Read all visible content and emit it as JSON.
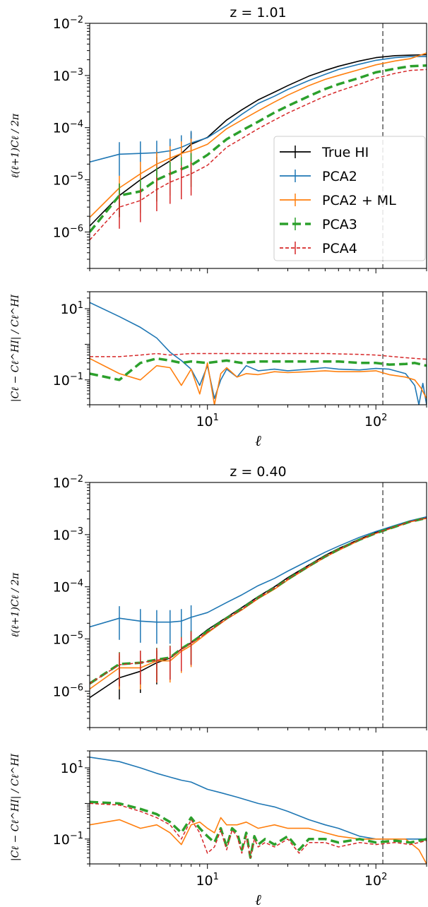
{
  "chart_data": [
    {
      "type": "line",
      "title": "z = 1.01",
      "ylabel": "ℓ(ℓ+1)Cℓ / 2π",
      "xscale": "log",
      "yscale": "log",
      "xlim": [
        2,
        200
      ],
      "ylim": [
        2e-07,
        0.01
      ],
      "x_tick_values": [
        10,
        100
      ],
      "y_tick_values": [
        1e-06,
        1e-05,
        0.0001,
        0.001,
        0.01
      ],
      "y_tick_labels": [
        {
          "b": "10",
          "e": "−6"
        },
        {
          "b": "10",
          "e": "−5"
        },
        {
          "b": "10",
          "e": "−4"
        },
        {
          "b": "10",
          "e": "−3"
        },
        {
          "b": "10",
          "e": "−2"
        }
      ],
      "vline_x": 110,
      "legend_position": "center-right",
      "legend": [
        "True HI",
        "PCA2",
        "PCA2 + ML",
        "PCA3",
        "PCA4"
      ],
      "series": [
        {
          "name": "True HI",
          "color": "#000000",
          "x": [
            2,
            3,
            4,
            5,
            6,
            7,
            8,
            10,
            13,
            16,
            20,
            25,
            30,
            40,
            50,
            60,
            80,
            100,
            130,
            160,
            200
          ],
          "y": [
            1.3e-06,
            5e-06,
            1e-05,
            1.6e-05,
            2.3e-05,
            3.2e-05,
            4.8e-05,
            6.5e-05,
            0.00014,
            0.00022,
            0.00034,
            0.00048,
            0.00064,
            0.00097,
            0.00125,
            0.0015,
            0.0019,
            0.0022,
            0.0024,
            0.00245,
            0.0025
          ]
        },
        {
          "name": "PCA2",
          "color": "#1f77b4",
          "x": [
            2,
            3,
            4,
            5,
            6,
            7,
            8,
            10,
            13,
            16,
            20,
            25,
            30,
            40,
            50,
            60,
            80,
            100,
            130,
            160,
            200
          ],
          "y": [
            2.2e-05,
            3.1e-05,
            3.2e-05,
            3.3e-05,
            3.6e-05,
            4.2e-05,
            5.1e-05,
            6.4e-05,
            0.00011,
            0.00018,
            0.00029,
            0.0004,
            0.00054,
            0.0008,
            0.00105,
            0.0013,
            0.00165,
            0.00195,
            0.0022,
            0.0023,
            0.0023
          ]
        },
        {
          "name": "PCA2 + ML",
          "color": "#ff7f0e",
          "x": [
            2,
            3,
            4,
            5,
            6,
            7,
            8,
            10,
            13,
            16,
            20,
            25,
            30,
            40,
            50,
            60,
            80,
            100,
            130,
            160,
            200
          ],
          "y": [
            1.9e-06,
            7e-06,
            1.3e-05,
            2e-05,
            2.6e-05,
            3.2e-05,
            3.6e-05,
            4.8e-05,
            9.5e-05,
            0.00014,
            0.00021,
            0.00031,
            0.00042,
            0.00064,
            0.00084,
            0.001,
            0.0013,
            0.0016,
            0.0019,
            0.0021,
            0.0027
          ]
        },
        {
          "name": "PCA3",
          "color": "#2ca02c",
          "x": [
            2,
            3,
            4,
            5,
            6,
            7,
            8,
            10,
            13,
            16,
            20,
            25,
            30,
            40,
            50,
            60,
            80,
            100,
            130,
            160,
            200
          ],
          "y": [
            1e-06,
            5e-06,
            6e-06,
            1e-05,
            1.3e-05,
            1.6e-05,
            1.9e-05,
            3e-05,
            6e-05,
            8.8e-05,
            0.00013,
            0.000195,
            0.00026,
            0.0004,
            0.00055,
            0.00068,
            0.0009,
            0.00115,
            0.00135,
            0.0015,
            0.00155
          ]
        },
        {
          "name": "PCA4",
          "color": "#d62728",
          "x": [
            2,
            3,
            4,
            5,
            6,
            7,
            8,
            10,
            13,
            16,
            20,
            25,
            30,
            40,
            50,
            60,
            80,
            100,
            130,
            160,
            200
          ],
          "y": [
            7e-07,
            3e-06,
            4e-06,
            6.5e-06,
            9e-06,
            1.1e-05,
            1.3e-05,
            1.9e-05,
            4.2e-05,
            6.2e-05,
            9.5e-05,
            0.00014,
            0.00019,
            0.00029,
            0.0004,
            0.0005,
            0.00068,
            0.00088,
            0.0011,
            0.00125,
            0.0013
          ]
        }
      ]
    },
    {
      "type": "line",
      "xlabel": "ℓ",
      "ylabel": "|Cℓ − Cℓ^HI| / Cℓ^HI",
      "xscale": "log",
      "yscale": "log",
      "xlim": [
        2,
        200
      ],
      "ylim": [
        0.02,
        30
      ],
      "x_tick_values": [
        10,
        100
      ],
      "x_tick_labels": [
        {
          "b": "10",
          "e": "1"
        },
        {
          "b": "10",
          "e": "2"
        }
      ],
      "y_tick_values": [
        0.1,
        10
      ],
      "y_tick_labels": [
        {
          "b": "10",
          "e": "−1"
        },
        {
          "b": "10",
          "e": "1"
        }
      ],
      "vline_x": 110,
      "series": [
        {
          "name": "PCA2",
          "color": "#1f77b4",
          "x": [
            2,
            3,
            4,
            5,
            6,
            7,
            8,
            9,
            10,
            11,
            12,
            13,
            15,
            17,
            20,
            25,
            30,
            40,
            50,
            60,
            80,
            100,
            120,
            150,
            170,
            180,
            190,
            200
          ],
          "y": [
            15,
            6,
            3,
            1.5,
            0.6,
            0.35,
            0.2,
            0.07,
            0.25,
            0.03,
            0.1,
            0.2,
            0.12,
            0.25,
            0.18,
            0.2,
            0.18,
            0.2,
            0.22,
            0.2,
            0.19,
            0.21,
            0.2,
            0.15,
            0.07,
            0.02,
            0.08,
            0.02
          ]
        },
        {
          "name": "PCA2 + ML",
          "color": "#ff7f0e",
          "x": [
            2,
            3,
            4,
            5,
            6,
            7,
            8,
            9,
            10,
            11,
            12,
            13,
            15,
            17,
            20,
            25,
            30,
            40,
            50,
            60,
            80,
            100,
            120,
            150,
            170,
            185,
            200
          ],
          "y": [
            0.4,
            0.15,
            0.1,
            0.25,
            0.22,
            0.07,
            0.2,
            0.04,
            0.3,
            0.02,
            0.15,
            0.22,
            0.12,
            0.15,
            0.14,
            0.17,
            0.16,
            0.17,
            0.18,
            0.17,
            0.17,
            0.18,
            0.14,
            0.12,
            0.1,
            0.06,
            0.03
          ]
        },
        {
          "name": "PCA3",
          "color": "#2ca02c",
          "x": [
            2,
            3,
            4,
            5,
            6,
            7,
            8,
            10,
            13,
            16,
            20,
            30,
            40,
            60,
            80,
            100,
            120,
            150,
            170,
            200
          ],
          "y": [
            0.15,
            0.1,
            0.3,
            0.4,
            0.35,
            0.3,
            0.33,
            0.3,
            0.35,
            0.3,
            0.33,
            0.33,
            0.33,
            0.33,
            0.3,
            0.3,
            0.27,
            0.28,
            0.3,
            0.25
          ]
        },
        {
          "name": "PCA4",
          "color": "#d62728",
          "x": [
            2,
            3,
            4,
            5,
            6,
            8,
            10,
            15,
            20,
            30,
            50,
            80,
            100,
            150,
            200
          ],
          "y": [
            0.45,
            0.45,
            0.5,
            0.55,
            0.5,
            0.55,
            0.55,
            0.55,
            0.55,
            0.55,
            0.55,
            0.52,
            0.5,
            0.42,
            0.38
          ]
        }
      ]
    },
    {
      "type": "line",
      "title": "z = 0.40",
      "ylabel": "ℓ(ℓ+1)Cℓ / 2π",
      "xscale": "log",
      "yscale": "log",
      "xlim": [
        2,
        200
      ],
      "ylim": [
        2e-07,
        0.01
      ],
      "x_tick_values": [
        10,
        100
      ],
      "y_tick_values": [
        1e-06,
        1e-05,
        0.0001,
        0.001,
        0.01
      ],
      "y_tick_labels": [
        {
          "b": "10",
          "e": "−6"
        },
        {
          "b": "10",
          "e": "−5"
        },
        {
          "b": "10",
          "e": "−4"
        },
        {
          "b": "10",
          "e": "−3"
        },
        {
          "b": "10",
          "e": "−2"
        }
      ],
      "vline_x": 110,
      "series": [
        {
          "name": "True HI",
          "color": "#000000",
          "x": [
            2,
            3,
            4,
            5,
            6,
            7,
            8,
            10,
            13,
            16,
            20,
            25,
            30,
            40,
            50,
            60,
            80,
            100,
            130,
            160,
            200
          ],
          "y": [
            7.5e-07,
            1.8e-06,
            2.4e-06,
            3.5e-06,
            4.3e-06,
            6.4e-06,
            8.5e-06,
            1.5e-05,
            2.6e-05,
            4e-05,
            6.5e-05,
            0.0001,
            0.00015,
            0.00026,
            0.0004,
            0.00054,
            0.00082,
            0.0011,
            0.00145,
            0.0018,
            0.0021
          ]
        },
        {
          "name": "PCA2",
          "color": "#1f77b4",
          "x": [
            2,
            3,
            4,
            5,
            6,
            7,
            8,
            10,
            13,
            16,
            20,
            25,
            30,
            40,
            50,
            60,
            80,
            100,
            130,
            160,
            200
          ],
          "y": [
            1.7e-05,
            2.5e-05,
            2.2e-05,
            2.1e-05,
            2.1e-05,
            2.2e-05,
            2.6e-05,
            3.2e-05,
            5e-05,
            7e-05,
            0.000105,
            0.000145,
            0.0002,
            0.00032,
            0.00046,
            0.0006,
            0.00089,
            0.00115,
            0.0015,
            0.00185,
            0.0022
          ]
        },
        {
          "name": "PCA2 + ML",
          "color": "#ff7f0e",
          "x": [
            2,
            3,
            4,
            5,
            6,
            7,
            8,
            10,
            13,
            16,
            20,
            25,
            30,
            40,
            50,
            60,
            80,
            100,
            130,
            160,
            200
          ],
          "y": [
            1.1e-06,
            2.8e-06,
            2.8e-06,
            3.8e-06,
            3.8e-06,
            5.8e-06,
            7.5e-06,
            1.3e-05,
            2.4e-05,
            3.6e-05,
            5.9e-05,
            9e-05,
            0.000135,
            0.00024,
            0.00037,
            0.0005,
            0.00078,
            0.00105,
            0.0014,
            0.00175,
            0.00205
          ]
        },
        {
          "name": "PCA3",
          "color": "#2ca02c",
          "x": [
            2,
            3,
            4,
            5,
            6,
            7,
            8,
            10,
            13,
            16,
            20,
            25,
            30,
            40,
            50,
            60,
            80,
            100,
            130,
            160,
            200
          ],
          "y": [
            1.4e-06,
            3.3e-06,
            3.5e-06,
            4e-06,
            4.4e-06,
            6.5e-06,
            8.5e-06,
            1.4e-05,
            2.5e-05,
            3.8e-05,
            6.2e-05,
            9.5e-05,
            0.00014,
            0.00025,
            0.00038,
            0.00052,
            0.0008,
            0.00107,
            0.00142,
            0.00178,
            0.00208
          ]
        },
        {
          "name": "PCA4",
          "color": "#d62728",
          "x": [
            2,
            3,
            4,
            5,
            6,
            7,
            8,
            10,
            13,
            16,
            20,
            25,
            30,
            40,
            50,
            60,
            80,
            100,
            130,
            160,
            200
          ],
          "y": [
            1.4e-06,
            3.2e-06,
            3.5e-06,
            3.9e-06,
            4.3e-06,
            6.3e-06,
            8.2e-06,
            1.35e-05,
            2.45e-05,
            3.7e-05,
            6.1e-05,
            9.4e-05,
            0.00014,
            0.00025,
            0.00038,
            0.00052,
            0.0008,
            0.00107,
            0.00142,
            0.00178,
            0.00208
          ]
        }
      ]
    },
    {
      "type": "line",
      "xlabel": "ℓ",
      "ylabel": "|Cℓ − Cℓ^HI| / Cℓ^HI",
      "xscale": "log",
      "yscale": "log",
      "xlim": [
        2,
        200
      ],
      "ylim": [
        0.02,
        30
      ],
      "x_tick_values": [
        10,
        100
      ],
      "x_tick_labels": [
        {
          "b": "10",
          "e": "1"
        },
        {
          "b": "10",
          "e": "2"
        }
      ],
      "y_tick_values": [
        0.1,
        10
      ],
      "y_tick_labels": [
        {
          "b": "10",
          "e": "−1"
        },
        {
          "b": "10",
          "e": "1"
        }
      ],
      "vline_x": 110,
      "series": [
        {
          "name": "PCA2",
          "color": "#1f77b4",
          "x": [
            2,
            3,
            4,
            5,
            6,
            7,
            8,
            10,
            12,
            15,
            20,
            25,
            30,
            40,
            50,
            60,
            80,
            100,
            120,
            150,
            200
          ],
          "y": [
            20,
            15,
            10,
            7,
            5.5,
            4.5,
            4,
            2.5,
            2,
            1.5,
            1,
            0.8,
            0.6,
            0.35,
            0.25,
            0.2,
            0.12,
            0.1,
            0.1,
            0.1,
            0.1
          ]
        },
        {
          "name": "PCA2 + ML",
          "color": "#ff7f0e",
          "x": [
            2,
            3,
            4,
            5,
            6,
            7,
            8,
            9,
            10,
            11,
            12,
            13,
            15,
            17,
            20,
            25,
            30,
            40,
            50,
            60,
            80,
            100,
            120,
            150,
            180,
            200
          ],
          "y": [
            0.25,
            0.35,
            0.2,
            0.25,
            0.15,
            0.07,
            0.25,
            0.3,
            0.2,
            0.15,
            0.4,
            0.25,
            0.25,
            0.3,
            0.2,
            0.25,
            0.2,
            0.2,
            0.15,
            0.12,
            0.1,
            0.1,
            0.1,
            0.1,
            0.05,
            0.02
          ]
        },
        {
          "name": "PCA3",
          "color": "#2ca02c",
          "x": [
            2,
            3,
            4,
            5,
            6,
            7,
            8,
            9,
            10,
            11,
            12,
            13,
            14,
            15,
            16,
            17,
            18,
            19,
            20,
            22,
            25,
            30,
            35,
            40,
            50,
            60,
            80,
            100,
            130,
            160,
            200
          ],
          "y": [
            1.1,
            1,
            0.7,
            0.5,
            0.3,
            0.15,
            0.4,
            0.2,
            0.12,
            0.08,
            0.2,
            0.06,
            0.2,
            0.15,
            0.05,
            0.15,
            0.03,
            0.12,
            0.07,
            0.1,
            0.07,
            0.12,
            0.05,
            0.1,
            0.1,
            0.08,
            0.1,
            0.08,
            0.09,
            0.08,
            0.1
          ]
        },
        {
          "name": "PCA4",
          "color": "#d62728",
          "x": [
            2,
            3,
            4,
            5,
            6,
            7,
            8,
            9,
            10,
            11,
            12,
            13,
            14,
            15,
            16,
            17,
            18,
            19,
            20,
            22,
            25,
            30,
            35,
            40,
            50,
            60,
            80,
            100,
            130,
            160,
            200
          ],
          "y": [
            1,
            0.9,
            0.6,
            0.4,
            0.25,
            0.1,
            0.35,
            0.15,
            0.04,
            0.06,
            0.18,
            0.05,
            0.18,
            0.12,
            0.04,
            0.12,
            0.03,
            0.1,
            0.06,
            0.08,
            0.06,
            0.1,
            0.04,
            0.08,
            0.08,
            0.06,
            0.08,
            0.07,
            0.08,
            0.07,
            0.09
          ]
        }
      ]
    }
  ]
}
